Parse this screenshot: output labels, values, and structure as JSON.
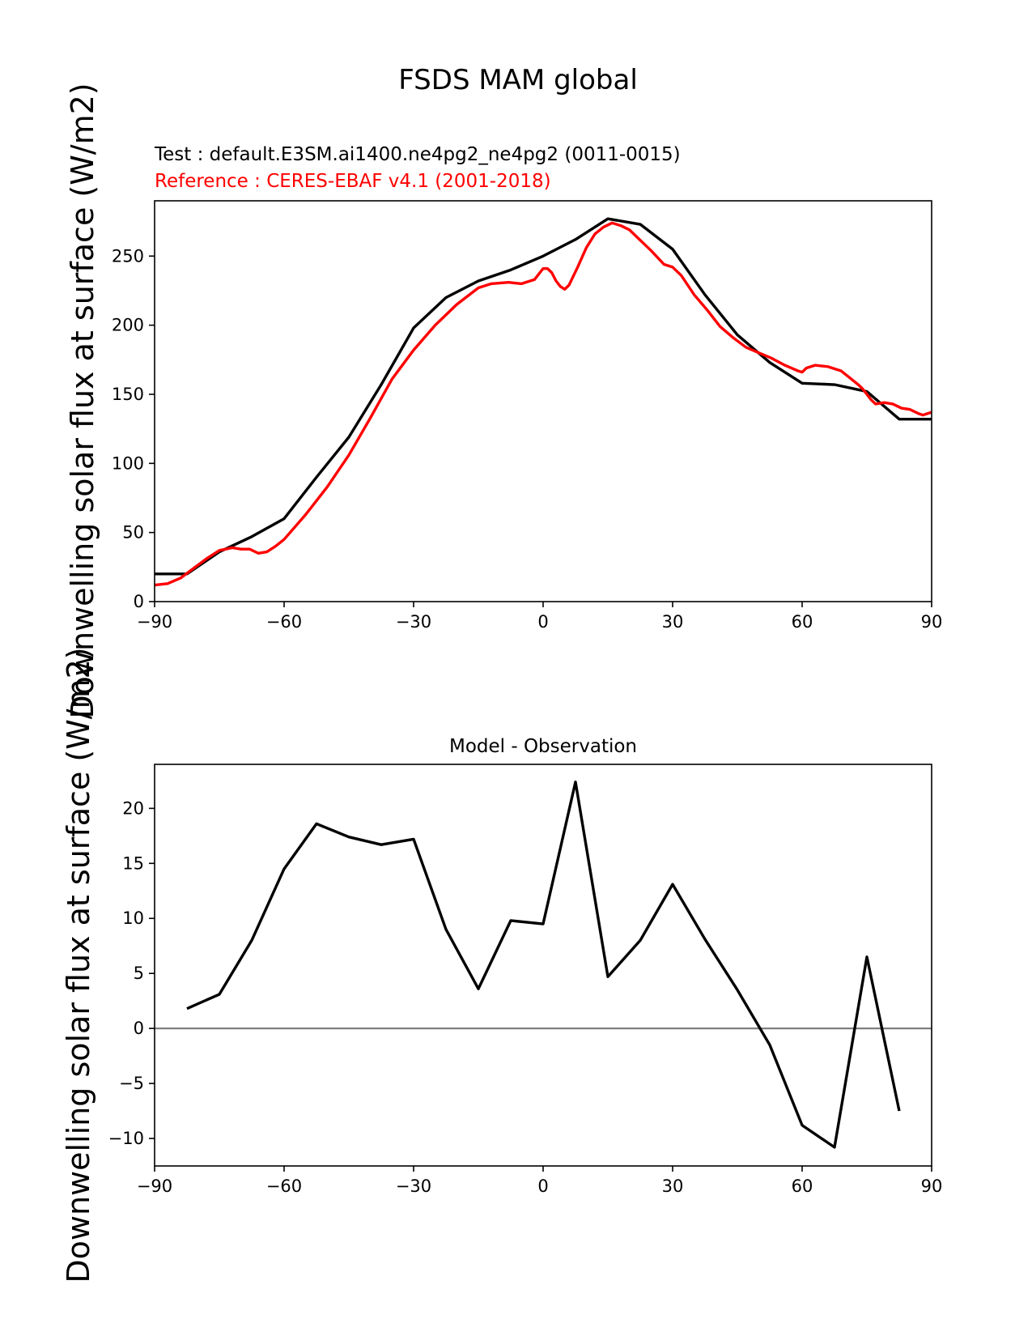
{
  "figure": {
    "title": "FSDS MAM global"
  },
  "chart_data": [
    {
      "type": "line",
      "test_label": "Test : default.E3SM.ai1400.ne4pg2_ne4pg2 (0011-0015)",
      "reference_label": "Reference : CERES-EBAF v4.1 (2001-2018)",
      "ylabel": "Downwelling solar flux at surface (W/m2)",
      "xlim": [
        -90,
        90
      ],
      "ylim": [
        0,
        290
      ],
      "xticks": [
        -90,
        -60,
        -30,
        0,
        30,
        60,
        90
      ],
      "xtick_labels": [
        "−90",
        "−60",
        "−30",
        "0",
        "30",
        "60",
        "90"
      ],
      "yticks": [
        0,
        50,
        100,
        150,
        200,
        250
      ],
      "series": [
        {
          "color": "#000000",
          "x": [
            -90,
            -82.5,
            -75,
            -67.5,
            -60,
            -52.5,
            -45,
            -37.5,
            -30,
            -22.5,
            -15,
            -7.5,
            0,
            7.5,
            15,
            22.5,
            30,
            37.5,
            45,
            52.5,
            60,
            67.5,
            75,
            82.5,
            90
          ],
          "y": [
            20,
            20,
            36,
            47,
            60,
            90,
            119,
            157,
            198,
            220,
            232,
            240,
            250,
            262,
            277,
            273,
            255,
            222,
            193,
            173,
            158,
            157,
            152,
            132,
            132
          ]
        },
        {
          "color": "#ff0000",
          "x": [
            -90,
            -87,
            -84,
            -81,
            -78,
            -75,
            -72,
            -70,
            -68,
            -66,
            -64,
            -62,
            -60,
            -55,
            -50,
            -45,
            -40,
            -35,
            -30,
            -25,
            -20,
            -15,
            -12,
            -8,
            -5,
            -2,
            0,
            1,
            2,
            3,
            4,
            5,
            6,
            8,
            10,
            12,
            14,
            16,
            18,
            20,
            22,
            25,
            28,
            30,
            32,
            35,
            38,
            41,
            44,
            47,
            50,
            53,
            56,
            59,
            60,
            61,
            63,
            66,
            69,
            71,
            73,
            74,
            75,
            76,
            77,
            79,
            81,
            83,
            85,
            87,
            88,
            90
          ],
          "y": [
            12,
            13,
            17,
            24,
            31,
            37,
            39,
            38,
            38,
            35,
            36,
            40,
            45,
            63,
            83,
            106,
            133,
            161,
            182,
            200,
            215,
            227,
            230,
            231,
            230,
            233,
            241,
            241,
            238,
            232,
            228,
            226,
            229,
            242,
            256,
            266,
            271,
            274,
            272,
            269,
            263,
            254,
            244,
            242,
            236,
            222,
            211,
            199,
            191,
            184,
            180,
            176,
            171,
            167,
            166,
            169,
            171,
            170,
            167,
            162,
            157,
            154,
            150,
            146,
            143,
            144,
            143,
            140,
            139,
            136,
            135,
            137
          ]
        }
      ]
    },
    {
      "type": "line",
      "title": "Model - Observation",
      "ylabel": "Downwelling solar flux at surface (W/m2)",
      "xlim": [
        -90,
        90
      ],
      "ylim": [
        -12.5,
        24
      ],
      "xticks": [
        -90,
        -60,
        -30,
        0,
        30,
        60,
        90
      ],
      "xtick_labels": [
        "−90",
        "−60",
        "−30",
        "0",
        "30",
        "60",
        "90"
      ],
      "yticks": [
        -10,
        -5,
        0,
        5,
        10,
        15,
        20
      ],
      "ytick_labels": [
        "−10",
        "−5",
        "0",
        "5",
        "10",
        "15",
        "20"
      ],
      "zero_line_color": "#808080",
      "series": [
        {
          "color": "#000000",
          "x": [
            -82.5,
            -75,
            -67.5,
            -60,
            -52.5,
            -45,
            -37.5,
            -30,
            -22.5,
            -15,
            -7.5,
            0,
            7.5,
            15,
            22.5,
            30,
            37.5,
            45,
            52.5,
            60,
            67.5,
            75,
            82.5
          ],
          "y": [
            1.8,
            3.1,
            8.0,
            14.5,
            18.6,
            17.4,
            16.7,
            17.2,
            9.0,
            3.6,
            9.8,
            9.5,
            22.4,
            4.7,
            8.0,
            13.1,
            8.1,
            3.5,
            -1.5,
            -8.8,
            -10.8,
            6.5,
            -7.5
          ]
        }
      ]
    }
  ]
}
